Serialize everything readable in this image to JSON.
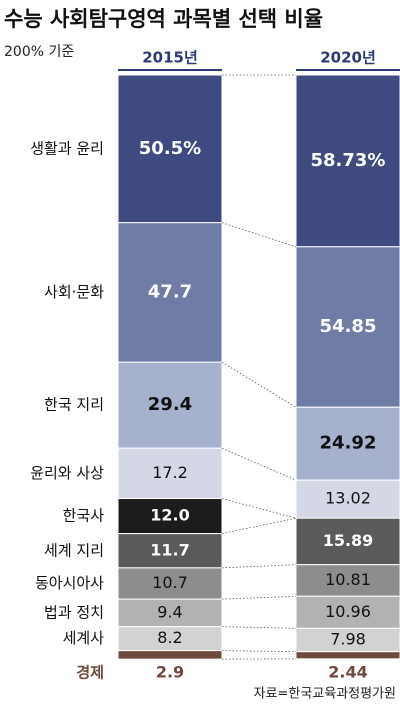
{
  "chart_data": {
    "type": "stacked_bar",
    "title": "수능 사회탐구영역 과목별 선택 비율",
    "subtitle": "200% 기준",
    "source": "자료=한국교육과정평가원",
    "categories": [
      "생활과 윤리",
      "사회·문화",
      "한국 지리",
      "윤리와 사상",
      "한국사",
      "세계 지리",
      "동아시아사",
      "법과 정치",
      "세계사",
      "경제"
    ],
    "colors": [
      "#3e4a80",
      "#6f7ca6",
      "#a6b1cd",
      "#d3d7e6",
      "#1c1c1c",
      "#5a5a5a",
      "#8d8d8d",
      "#b2b2b2",
      "#d2d2d2",
      "#6e4a3c"
    ],
    "ylim": [
      0,
      200
    ],
    "series": [
      {
        "name": "2015년",
        "color": "#2c3a78",
        "values": [
          50.5,
          47.7,
          29.4,
          17.2,
          12.0,
          11.7,
          10.7,
          9.4,
          8.2,
          2.9
        ],
        "value_labels": [
          "50.5%",
          "47.7",
          "29.4",
          "17.2",
          "12.0",
          "11.7",
          "10.7",
          "9.4",
          "8.2",
          "2.9"
        ]
      },
      {
        "name": "2020년",
        "color": "#2c3a78",
        "values": [
          58.73,
          54.85,
          24.92,
          13.02,
          null,
          15.89,
          10.81,
          10.96,
          7.98,
          2.44
        ],
        "value_labels": [
          "58.73%",
          "54.85",
          "24.92",
          "13.02",
          null,
          "15.89",
          "10.81",
          "10.96",
          "7.98",
          "2.44"
        ]
      }
    ]
  }
}
